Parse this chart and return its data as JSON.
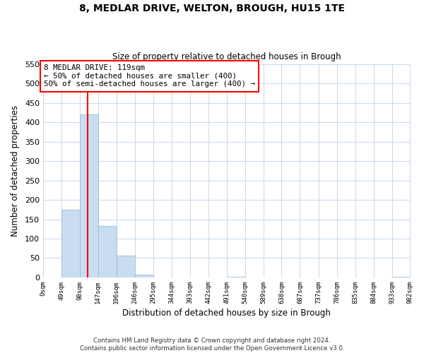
{
  "title": "8, MEDLAR DRIVE, WELTON, BROUGH, HU15 1TE",
  "subtitle": "Size of property relative to detached houses in Brough",
  "xlabel": "Distribution of detached houses by size in Brough",
  "ylabel": "Number of detached properties",
  "bar_edges": [
    0,
    49,
    98,
    147,
    196,
    246,
    295,
    344,
    393,
    442,
    491,
    540,
    589,
    638,
    687,
    737,
    786,
    835,
    884,
    933,
    982
  ],
  "bar_heights": [
    0,
    174,
    420,
    133,
    57,
    7,
    0,
    0,
    0,
    0,
    2,
    0,
    0,
    0,
    0,
    0,
    0,
    0,
    0,
    2
  ],
  "tick_labels": [
    "0sqm",
    "49sqm",
    "98sqm",
    "147sqm",
    "196sqm",
    "246sqm",
    "295sqm",
    "344sqm",
    "393sqm",
    "442sqm",
    "491sqm",
    "540sqm",
    "589sqm",
    "638sqm",
    "687sqm",
    "737sqm",
    "786sqm",
    "835sqm",
    "884sqm",
    "933sqm",
    "982sqm"
  ],
  "bar_color": "#c9ddf0",
  "bar_edge_color": "#9bbbd8",
  "red_line_x": 119,
  "annotation_title": "8 MEDLAR DRIVE: 119sqm",
  "annotation_line1": "← 50% of detached houses are smaller (400)",
  "annotation_line2": "50% of semi-detached houses are larger (400) →",
  "ylim": [
    0,
    550
  ],
  "yticks": [
    0,
    50,
    100,
    150,
    200,
    250,
    300,
    350,
    400,
    450,
    500,
    550
  ],
  "footer1": "Contains HM Land Registry data © Crown copyright and database right 2024.",
  "footer2": "Contains public sector information licensed under the Open Government Licence v3.0.",
  "bg_color": "#ffffff",
  "grid_color": "#c8d8ec"
}
